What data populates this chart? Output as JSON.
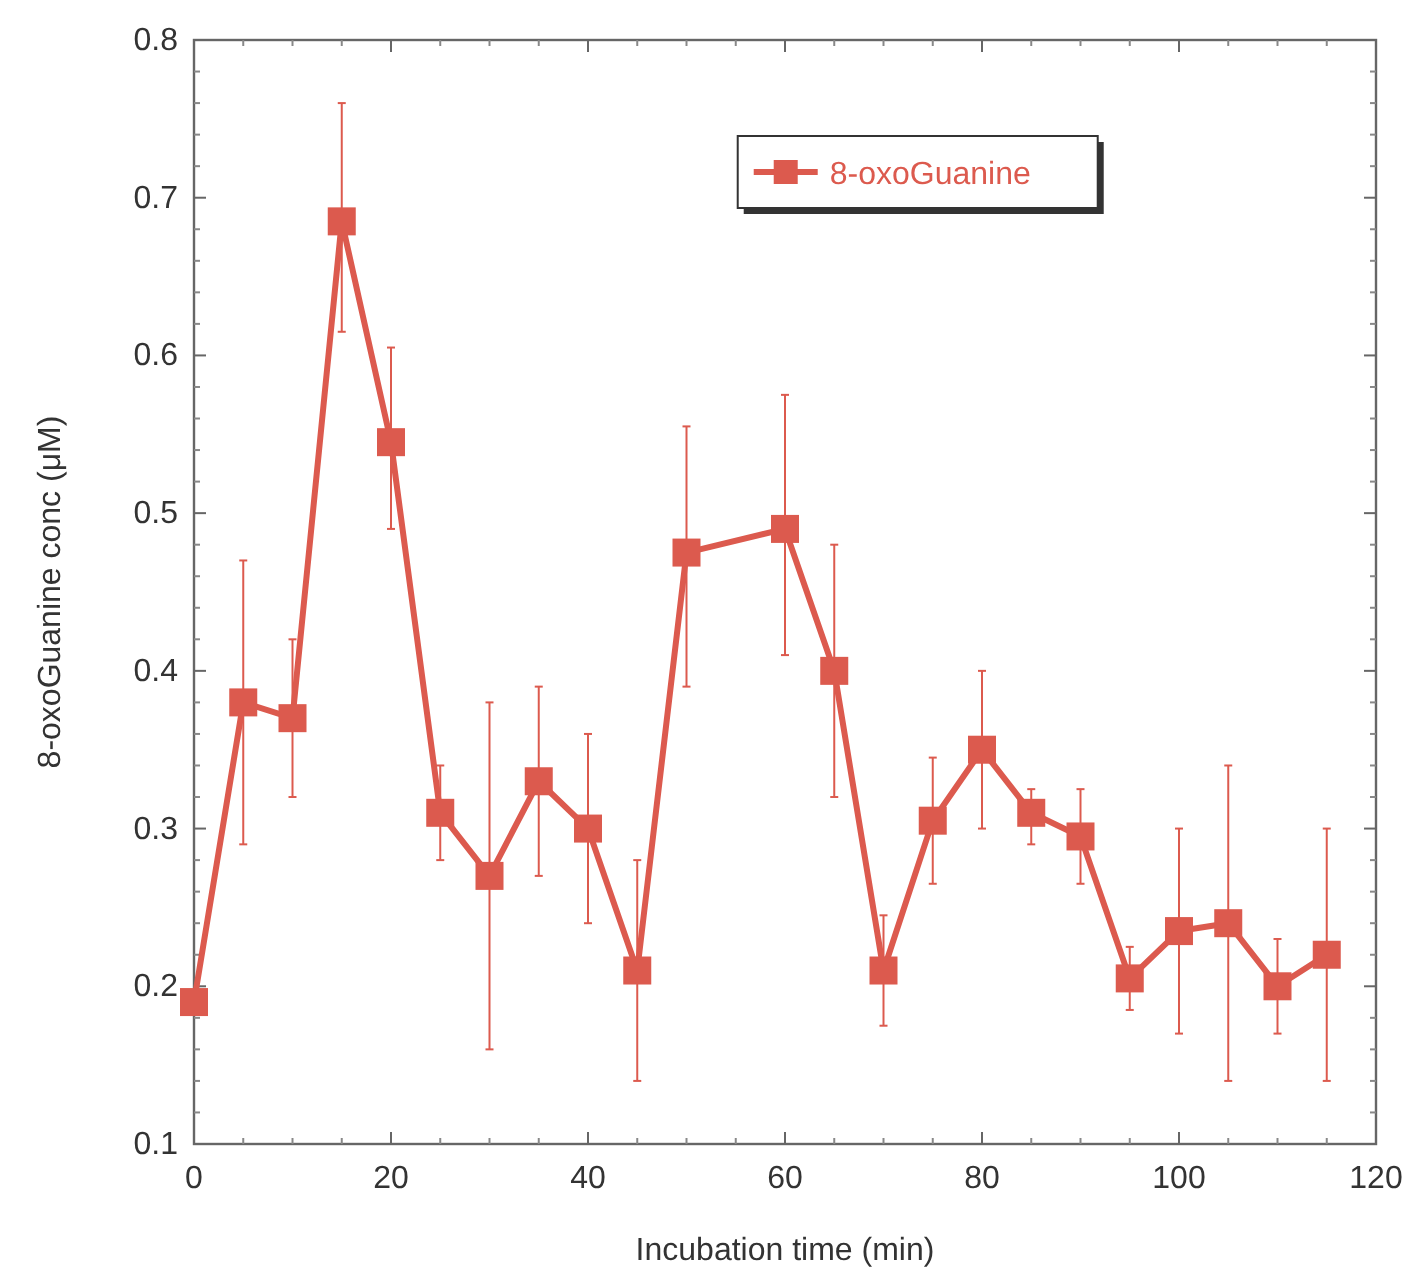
{
  "chart_data": {
    "type": "line",
    "xlabel": "Incubation time (min)",
    "ylabel": "8-oxoGuanine conc (μM)",
    "x": [
      0,
      5,
      10,
      15,
      20,
      25,
      30,
      35,
      40,
      45,
      50,
      60,
      65,
      70,
      75,
      80,
      85,
      90,
      95,
      100,
      105,
      110,
      115
    ],
    "series": [
      {
        "name": "8-oxoGuanine",
        "color": "#dc5a4e",
        "values": [
          0.19,
          0.38,
          0.37,
          0.685,
          0.545,
          0.31,
          0.27,
          0.33,
          0.3,
          0.21,
          0.475,
          0.49,
          0.4,
          0.21,
          0.305,
          0.35,
          0.31,
          0.295,
          0.205,
          0.235,
          0.24,
          0.2,
          0.22
        ],
        "errors": [
          null,
          [
            0.29,
            0.47
          ],
          [
            0.32,
            0.42
          ],
          [
            0.615,
            0.76
          ],
          [
            0.49,
            0.605
          ],
          [
            0.28,
            0.34
          ],
          [
            0.16,
            0.38
          ],
          [
            0.27,
            0.39
          ],
          [
            0.24,
            0.36
          ],
          [
            0.14,
            0.28
          ],
          [
            0.39,
            0.555
          ],
          [
            0.41,
            0.575
          ],
          [
            0.32,
            0.48
          ],
          [
            0.175,
            0.245
          ],
          [
            0.265,
            0.345
          ],
          [
            0.3,
            0.4
          ],
          [
            0.29,
            0.325
          ],
          [
            0.265,
            0.325
          ],
          [
            0.185,
            0.225
          ],
          [
            0.17,
            0.3
          ],
          [
            0.14,
            0.34
          ],
          [
            0.17,
            0.23
          ],
          [
            0.14,
            0.3
          ]
        ]
      }
    ],
    "xlim": [
      0,
      120
    ],
    "xticks": [
      0,
      20,
      40,
      60,
      80,
      100,
      120
    ],
    "ylim": [
      0.1,
      0.8
    ],
    "yticks": [
      0.1,
      0.2,
      0.3,
      0.4,
      0.5,
      0.6,
      0.7,
      0.8
    ],
    "marker": "square",
    "line_style": "solid",
    "legend": "top right",
    "grid": false
  }
}
